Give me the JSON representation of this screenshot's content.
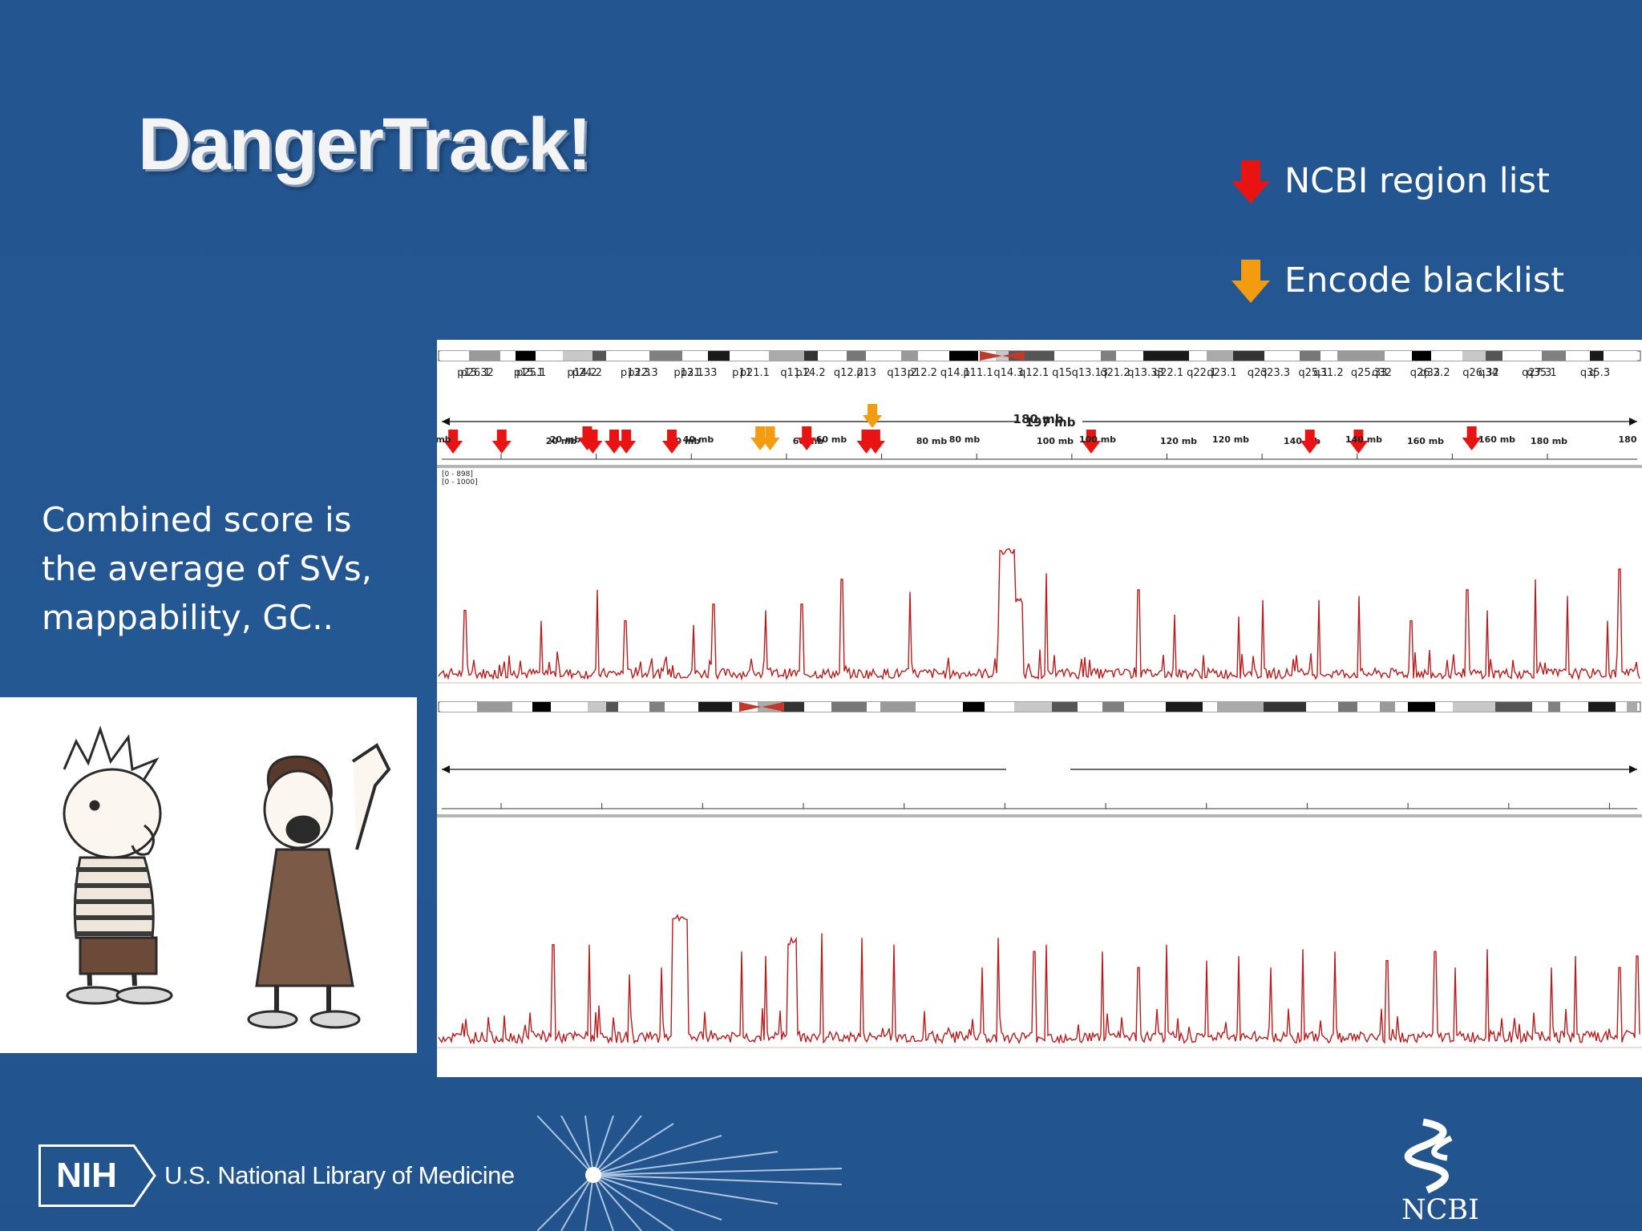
{
  "title": "DangerTrack!",
  "legend": {
    "items": [
      {
        "label": "NCBI region list",
        "color": "#e81414",
        "icon": "red-arrow-icon"
      },
      {
        "label": "Encode blacklist",
        "color": "#f39c12",
        "icon": "orange-arrow-icon"
      }
    ]
  },
  "body_text": {
    "lines": [
      "Combined score is",
      "the average of SVs,",
      "mappability, GC.."
    ]
  },
  "igv": {
    "panels": [
      {
        "bands": [
          "p26.1",
          "p25.1",
          "p24.2",
          "p22.3",
          "p21.33",
          "p21.1",
          "p14.2",
          "p13",
          "p12.2",
          "p11.1",
          "q12.1",
          "q13.13",
          "q13.33",
          "q22.1",
          "q23",
          "q25.1",
          "q25.33",
          "q26.2",
          "q26.32",
          "q27.3",
          "q"
        ],
        "length_label": "197 mb",
        "ruler_ticks": [
          "20 mb",
          "40 mb",
          "60 mb",
          "80 mb",
          "100 mb",
          "120 mb",
          "140 mb",
          "160 mb",
          "180 mb"
        ],
        "range_label": "[0 - 1000]",
        "red_marks_mb": [
          2,
          10,
          25,
          28.5,
          30.5,
          38,
          70,
          71.5,
          107,
          143,
          151
        ],
        "orange_marks_mb": [
          71
        ]
      },
      {
        "bands": [
          "p15.32",
          "p15.1",
          "p14.2",
          "p13.3",
          "p13.1",
          "p11",
          "q11.2",
          "q12.2",
          "q13.2",
          "q14.1",
          "q14.3",
          "q15",
          "q21.2",
          "q22.1",
          "q23.1",
          "q23.3",
          "q31.2",
          "q32",
          "q33.2",
          "q34",
          "q35.1",
          "q35.3"
        ],
        "length_label": "180 mb",
        "ruler_ticks": [
          "mb",
          "20 mb",
          "40 mb",
          "60 mb",
          "80 mb",
          "100 mb",
          "120 mb",
          "140 mb",
          "160 mb",
          "180"
        ],
        "range_label": "[0 - 898]",
        "red_marks_mb": [
          22,
          55,
          155
        ],
        "orange_marks_mb": [
          48,
          49.5
        ]
      }
    ]
  },
  "footer": {
    "nih": "NIH",
    "org": "U.S. National Library of Medicine",
    "ncbi": "NCBI"
  }
}
